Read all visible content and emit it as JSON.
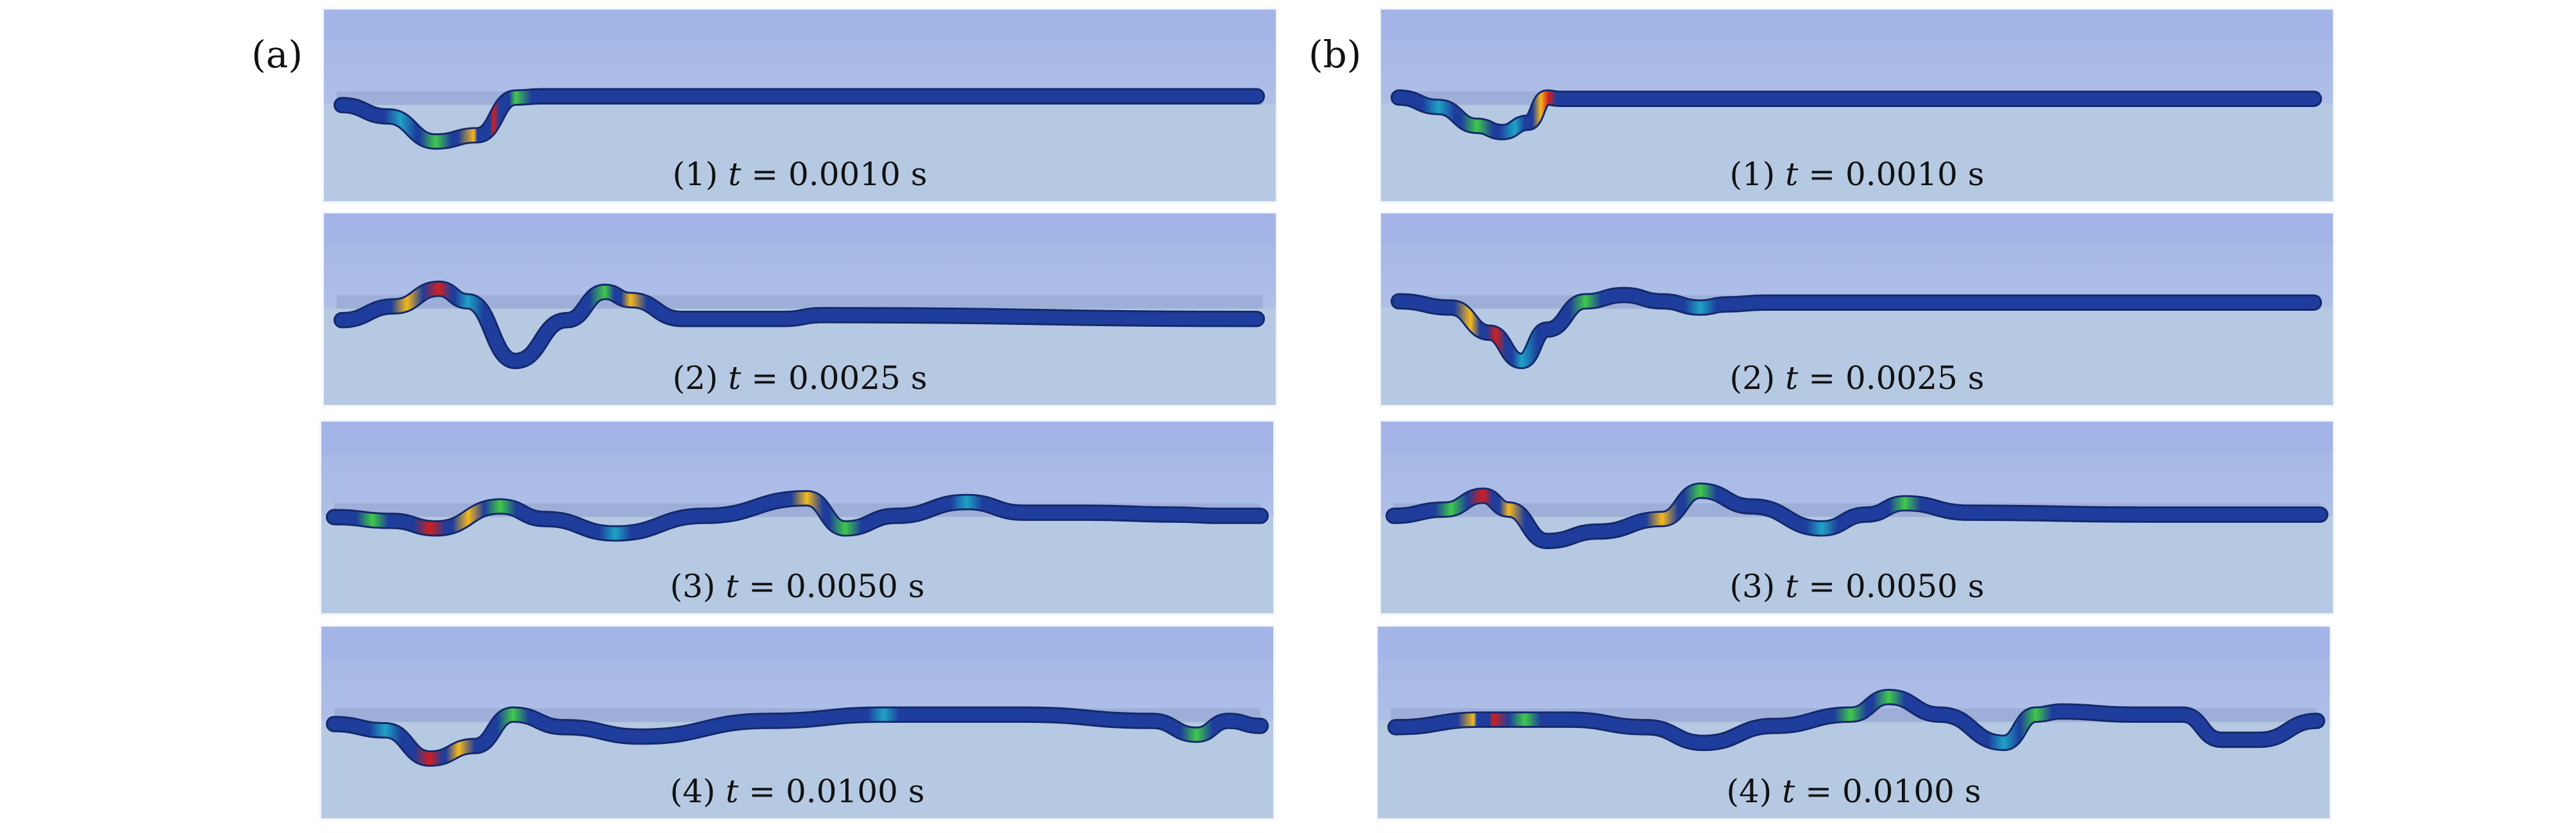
{
  "figure": {
    "columns": [
      {
        "label": "(a)",
        "panels": [
          {
            "index": "(1)",
            "variable": "t",
            "equals": "=",
            "value": "0.0010",
            "unit": "s"
          },
          {
            "index": "(2)",
            "variable": "t",
            "equals": "=",
            "value": "0.0025",
            "unit": "s"
          },
          {
            "index": "(3)",
            "variable": "t",
            "equals": "=",
            "value": "0.0050",
            "unit": "s"
          },
          {
            "index": "(4)",
            "variable": "t",
            "equals": "=",
            "value": "0.0100",
            "unit": "s"
          }
        ]
      },
      {
        "label": "(b)",
        "panels": [
          {
            "index": "(1)",
            "variable": "t",
            "equals": "=",
            "value": "0.0010",
            "unit": "s"
          },
          {
            "index": "(2)",
            "variable": "t",
            "equals": "=",
            "value": "0.0025",
            "unit": "s"
          },
          {
            "index": "(3)",
            "variable": "t",
            "equals": "=",
            "value": "0.0050",
            "unit": "s"
          },
          {
            "index": "(4)",
            "variable": "t",
            "equals": "=",
            "value": "0.0100",
            "unit": "s"
          }
        ]
      }
    ],
    "colors": {
      "sky_top": "#a3b5e6",
      "sky_bottom": "#b9c9e8",
      "ground": "#b5c9e2",
      "beam": "#1e3d9c",
      "stress_high": "#d11f1f",
      "stress_mid_high": "#f5b81c",
      "stress_mid": "#3fc94a",
      "stress_low": "#1fa3c4"
    }
  }
}
